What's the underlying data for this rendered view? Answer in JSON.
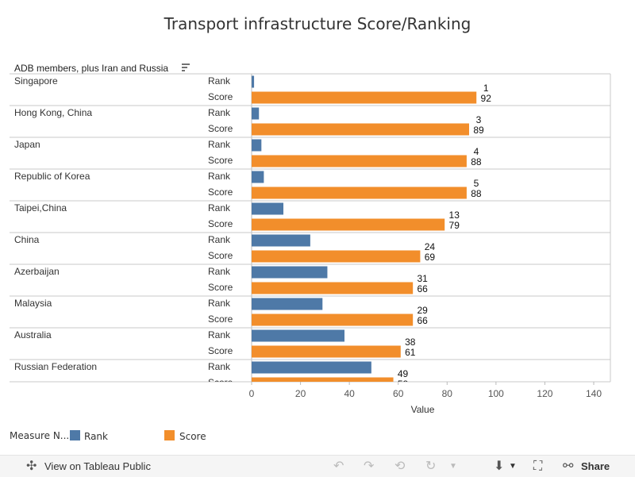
{
  "title": "Transport infrastructure Score/Ranking",
  "chart_data": {
    "type": "bar",
    "orientation": "horizontal",
    "row_header": "ADB members, plus Iran and Russia",
    "xlabel": "Value",
    "xlim": [
      0,
      145
    ],
    "xticks": [
      0,
      20,
      40,
      60,
      80,
      100,
      120,
      140
    ],
    "measures": [
      "Rank",
      "Score"
    ],
    "categories": [
      "Singapore",
      "Hong Kong, China",
      "Japan",
      "Republic of Korea",
      "Taipei,China",
      "China",
      "Azerbaijan",
      "Malaysia",
      "Australia",
      "Russian Federation"
    ],
    "series": [
      {
        "name": "Rank",
        "color": "#4e79a7",
        "values": [
          1,
          3,
          4,
          5,
          13,
          24,
          31,
          29,
          38,
          49
        ]
      },
      {
        "name": "Score",
        "color": "#f28e2b",
        "values": [
          92,
          89,
          88,
          88,
          79,
          69,
          66,
          66,
          61,
          58
        ]
      }
    ],
    "grid": false,
    "legend": "bottom-left"
  },
  "legend": {
    "title": "Measure N...",
    "items": [
      {
        "label": "Rank",
        "color": "#4e79a7"
      },
      {
        "label": "Score",
        "color": "#f28e2b"
      }
    ]
  },
  "toolbar": {
    "view_label": "View on Tableau Public",
    "share_label": "Share"
  }
}
